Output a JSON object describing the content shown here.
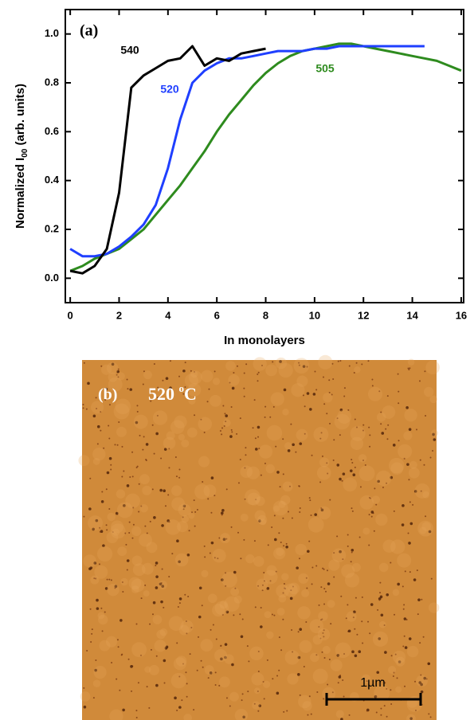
{
  "chart_data": {
    "type": "line",
    "panel_label": "(a)",
    "xlabel": "In monolayers",
    "ylabel": {
      "text": "Normalized I",
      "sub": "00",
      "suffix": " (arb. units)"
    },
    "x": [
      0,
      0.5,
      1,
      1.5,
      2,
      2.5,
      3,
      3.5,
      4,
      4.5,
      5,
      5.5,
      6,
      6.5,
      7,
      7.5,
      8,
      8.5,
      9,
      9.5,
      10,
      10.5,
      11,
      11.5,
      12,
      12.5,
      13,
      13.5,
      14,
      14.5,
      15,
      15.5,
      16
    ],
    "series": [
      {
        "name": "540",
        "color": "#000000",
        "values": [
          0.03,
          0.02,
          0.05,
          0.12,
          0.35,
          0.78,
          0.83,
          0.86,
          0.89,
          0.9,
          0.95,
          0.87,
          0.9,
          0.89,
          0.92,
          0.93,
          0.94,
          null,
          null,
          null,
          null,
          null,
          null,
          null,
          null,
          null,
          null,
          null,
          null,
          null,
          null,
          null,
          null
        ]
      },
      {
        "name": "520",
        "color": "#1f3fff",
        "values": [
          0.12,
          0.09,
          0.09,
          0.1,
          0.13,
          0.17,
          0.22,
          0.3,
          0.45,
          0.65,
          0.8,
          0.85,
          0.88,
          0.9,
          0.9,
          0.91,
          0.92,
          0.93,
          0.93,
          0.93,
          0.94,
          0.94,
          0.95,
          0.95,
          0.95,
          0.95,
          0.95,
          0.95,
          0.95,
          0.95,
          null,
          null,
          null
        ]
      },
      {
        "name": "505",
        "color": "#2e8b1e",
        "values": [
          0.03,
          0.05,
          0.08,
          0.1,
          0.12,
          0.16,
          0.2,
          0.26,
          0.32,
          0.38,
          0.45,
          0.52,
          0.6,
          0.67,
          0.73,
          0.79,
          0.84,
          0.88,
          0.91,
          0.93,
          0.94,
          0.95,
          0.96,
          0.96,
          0.95,
          0.94,
          0.93,
          0.92,
          0.91,
          0.9,
          0.89,
          0.87,
          0.85
        ]
      }
    ],
    "xlim": [
      -0.2,
      16.1
    ],
    "xticks": [
      0,
      2,
      4,
      6,
      8,
      10,
      12,
      14,
      16
    ],
    "ylim": [
      -0.1,
      1.1
    ],
    "yticks": [
      {
        "value": 0,
        "label": "0.0"
      },
      0.2,
      0.4,
      0.6,
      0.8,
      {
        "value": 1,
        "label": "1.0"
      }
    ]
  },
  "image": {
    "panel_label": "(b)",
    "temperature": "520 ",
    "degree": "o",
    "unit": "C",
    "scale_bar": "1µm"
  }
}
